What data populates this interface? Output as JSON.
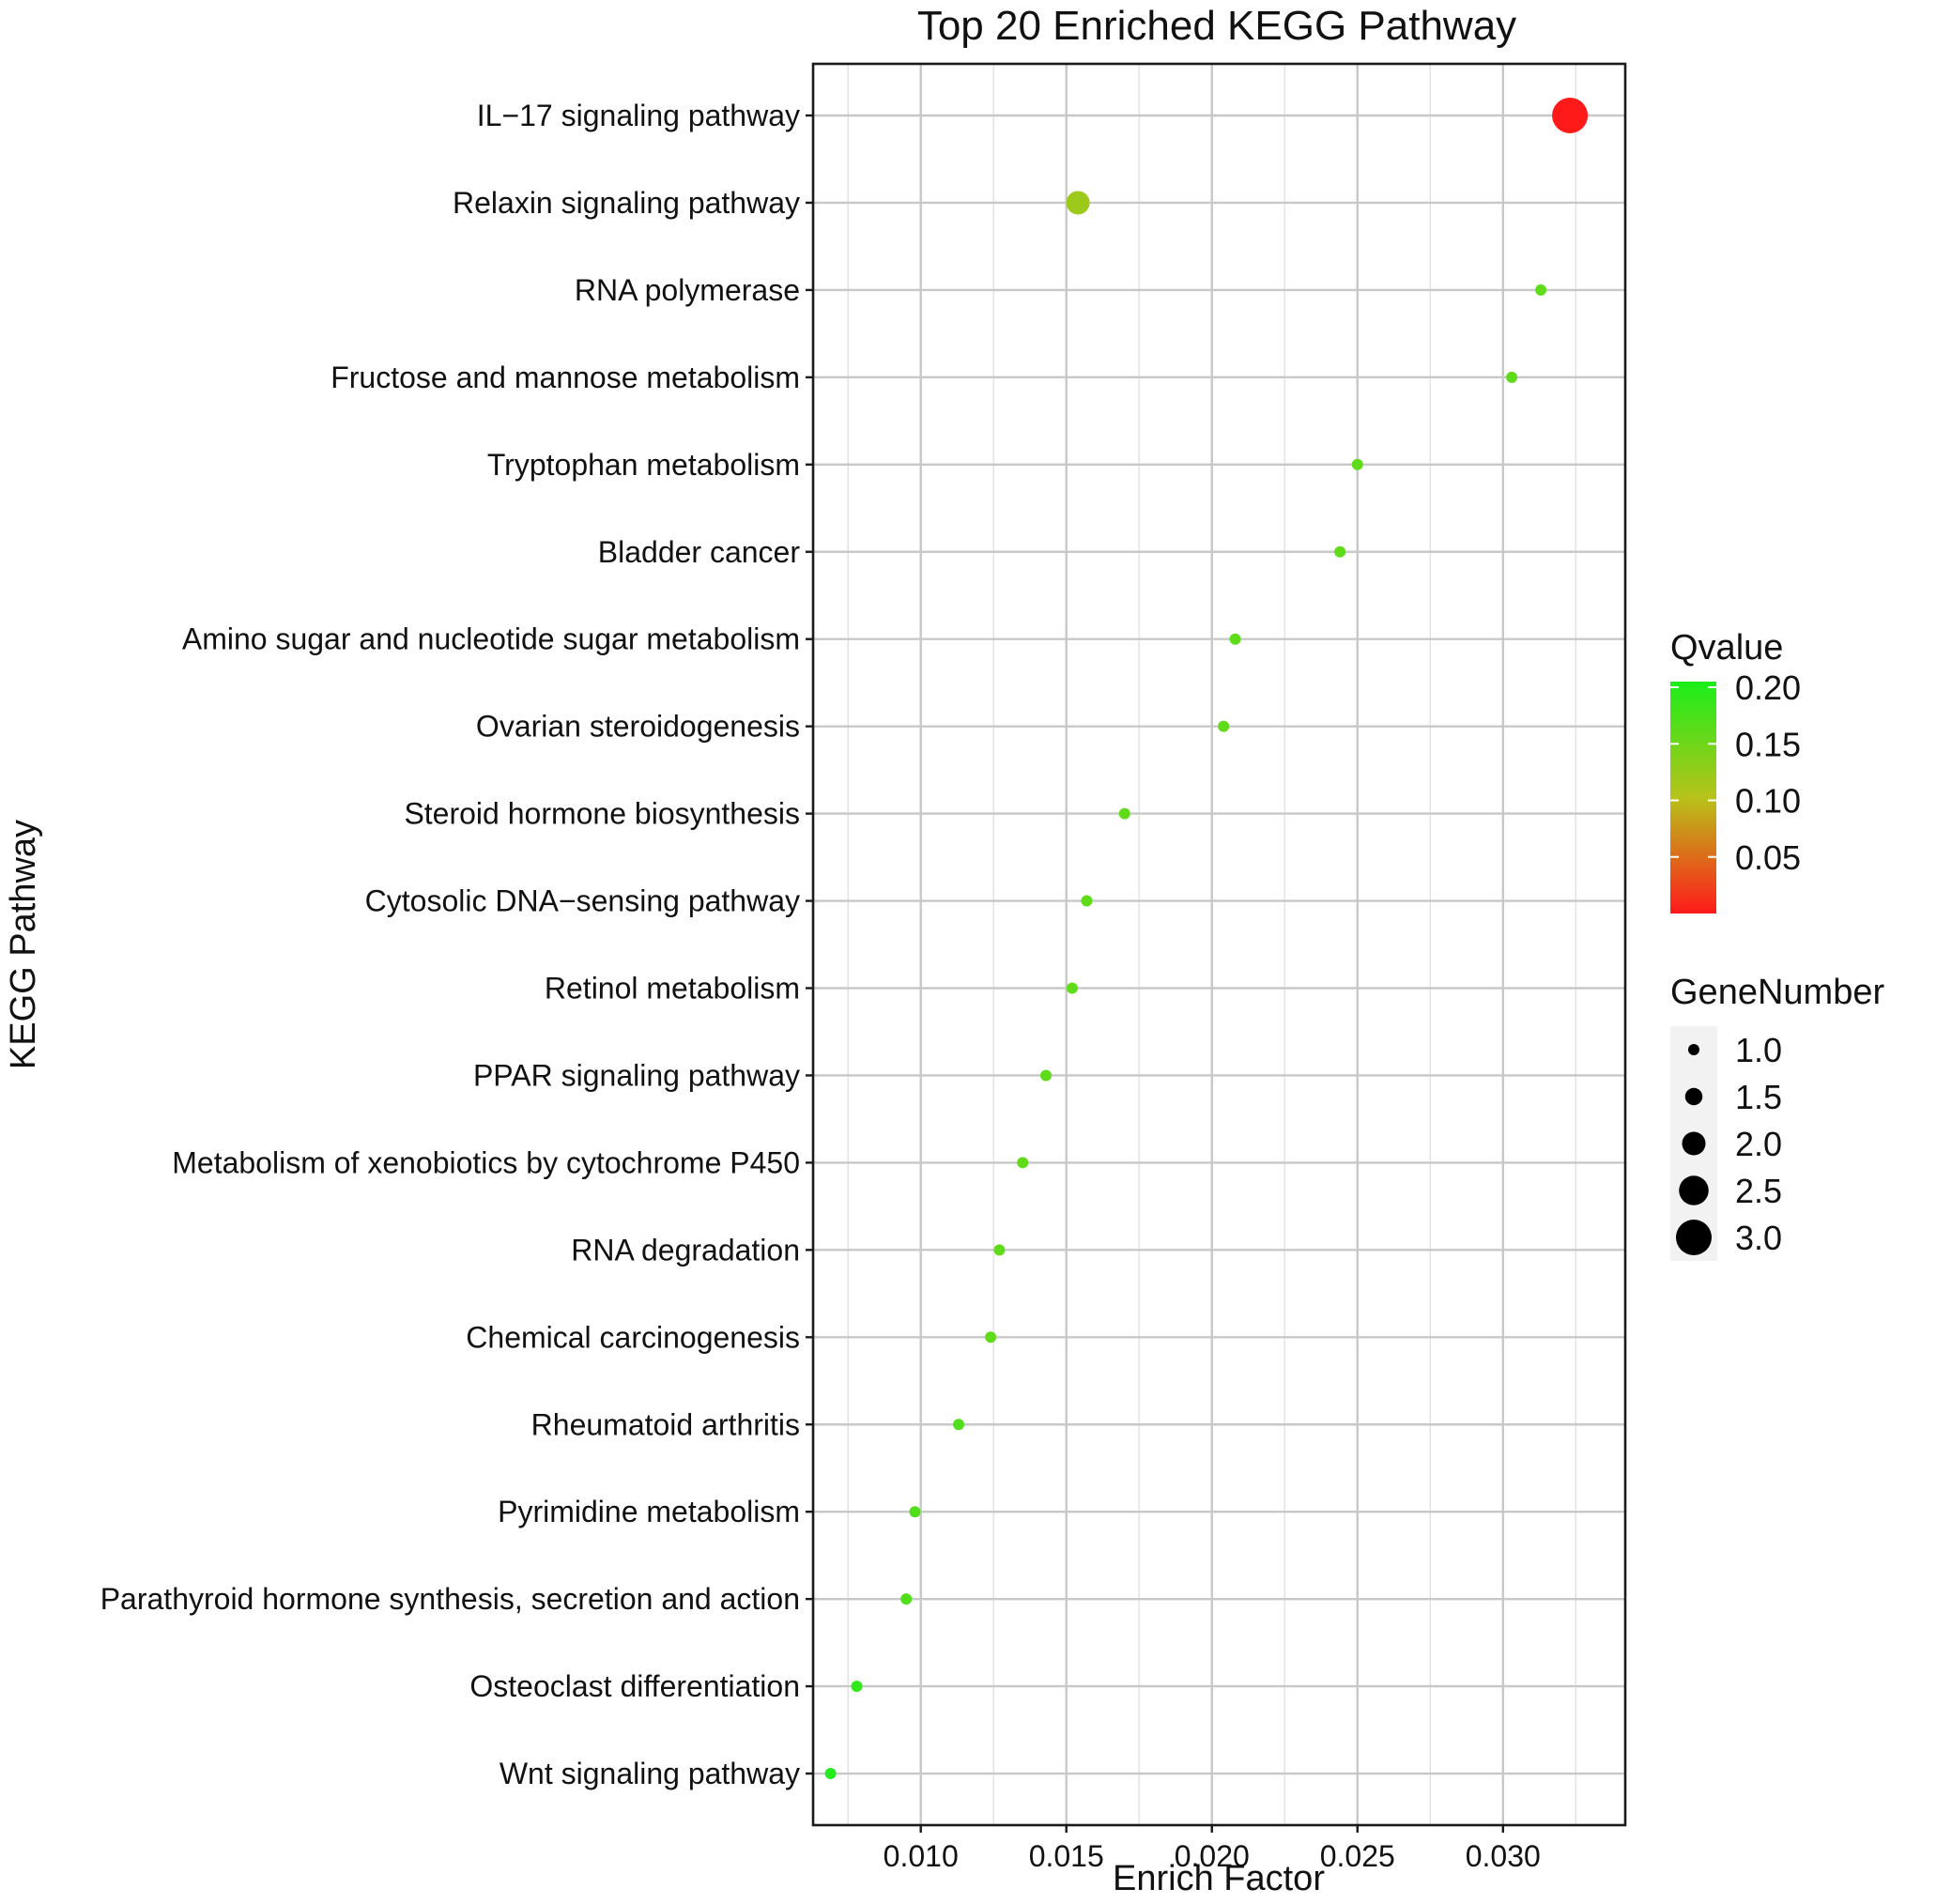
{
  "chart_data": {
    "type": "scatter",
    "title": "Top 20 Enriched KEGG Pathway",
    "xlabel": "Enrich Factor",
    "ylabel": "KEGG Pathway",
    "xlim": [
      0.0063,
      0.0342
    ],
    "x_ticks": [
      0.01,
      0.015,
      0.02,
      0.025,
      0.03
    ],
    "x_tick_labels": [
      "0.010",
      "0.015",
      "0.020",
      "0.025",
      "0.030"
    ],
    "grid": true,
    "legend_position": "right",
    "color_legend": {
      "title": "Qvalue",
      "range": [
        0.0,
        0.205
      ],
      "low_color": "#ff1a1a",
      "mid_color": "#b8c21a",
      "high_color": "#1aee1a",
      "ticks": [
        0.2,
        0.15,
        0.1,
        0.05
      ],
      "tick_labels": [
        "0.20",
        "0.15",
        "0.10",
        "0.05"
      ]
    },
    "size_legend": {
      "title": "GeneNumber",
      "values": [
        1.0,
        1.5,
        2.0,
        2.5,
        3.0
      ],
      "labels": [
        "1.0",
        "1.5",
        "2.0",
        "2.5",
        "3.0"
      ]
    },
    "points": [
      {
        "pathway": "IL−17 signaling pathway",
        "enrich_factor": 0.0323,
        "qvalue": 0.0,
        "gene_number": 3
      },
      {
        "pathway": "Relaxin signaling pathway",
        "enrich_factor": 0.0154,
        "qvalue": 0.12,
        "gene_number": 2
      },
      {
        "pathway": "RNA polymerase",
        "enrich_factor": 0.0313,
        "qvalue": 0.16,
        "gene_number": 1
      },
      {
        "pathway": "Fructose and mannose metabolism",
        "enrich_factor": 0.0303,
        "qvalue": 0.16,
        "gene_number": 1
      },
      {
        "pathway": "Tryptophan metabolism",
        "enrich_factor": 0.025,
        "qvalue": 0.16,
        "gene_number": 1
      },
      {
        "pathway": "Bladder cancer",
        "enrich_factor": 0.0244,
        "qvalue": 0.16,
        "gene_number": 1
      },
      {
        "pathway": "Amino sugar and nucleotide sugar metabolism",
        "enrich_factor": 0.0208,
        "qvalue": 0.16,
        "gene_number": 1
      },
      {
        "pathway": "Ovarian steroidogenesis",
        "enrich_factor": 0.0204,
        "qvalue": 0.16,
        "gene_number": 1
      },
      {
        "pathway": "Steroid hormone biosynthesis",
        "enrich_factor": 0.017,
        "qvalue": 0.16,
        "gene_number": 1
      },
      {
        "pathway": "Cytosolic DNA−sensing pathway",
        "enrich_factor": 0.0157,
        "qvalue": 0.16,
        "gene_number": 1
      },
      {
        "pathway": "Retinol metabolism",
        "enrich_factor": 0.0152,
        "qvalue": 0.16,
        "gene_number": 1
      },
      {
        "pathway": "PPAR signaling pathway",
        "enrich_factor": 0.0143,
        "qvalue": 0.16,
        "gene_number": 1
      },
      {
        "pathway": "Metabolism of xenobiotics by cytochrome P450",
        "enrich_factor": 0.0135,
        "qvalue": 0.16,
        "gene_number": 1
      },
      {
        "pathway": "RNA degradation",
        "enrich_factor": 0.0127,
        "qvalue": 0.16,
        "gene_number": 1
      },
      {
        "pathway": "Chemical carcinogenesis",
        "enrich_factor": 0.0124,
        "qvalue": 0.16,
        "gene_number": 1
      },
      {
        "pathway": "Rheumatoid arthritis",
        "enrich_factor": 0.0113,
        "qvalue": 0.17,
        "gene_number": 1
      },
      {
        "pathway": "Pyrimidine metabolism",
        "enrich_factor": 0.0098,
        "qvalue": 0.17,
        "gene_number": 1
      },
      {
        "pathway": "Parathyroid hormone synthesis, secretion and action",
        "enrich_factor": 0.0095,
        "qvalue": 0.17,
        "gene_number": 1
      },
      {
        "pathway": "Osteoclast differentiation",
        "enrich_factor": 0.0078,
        "qvalue": 0.19,
        "gene_number": 1
      },
      {
        "pathway": "Wnt signaling pathway",
        "enrich_factor": 0.0069,
        "qvalue": 0.2,
        "gene_number": 1
      }
    ]
  }
}
